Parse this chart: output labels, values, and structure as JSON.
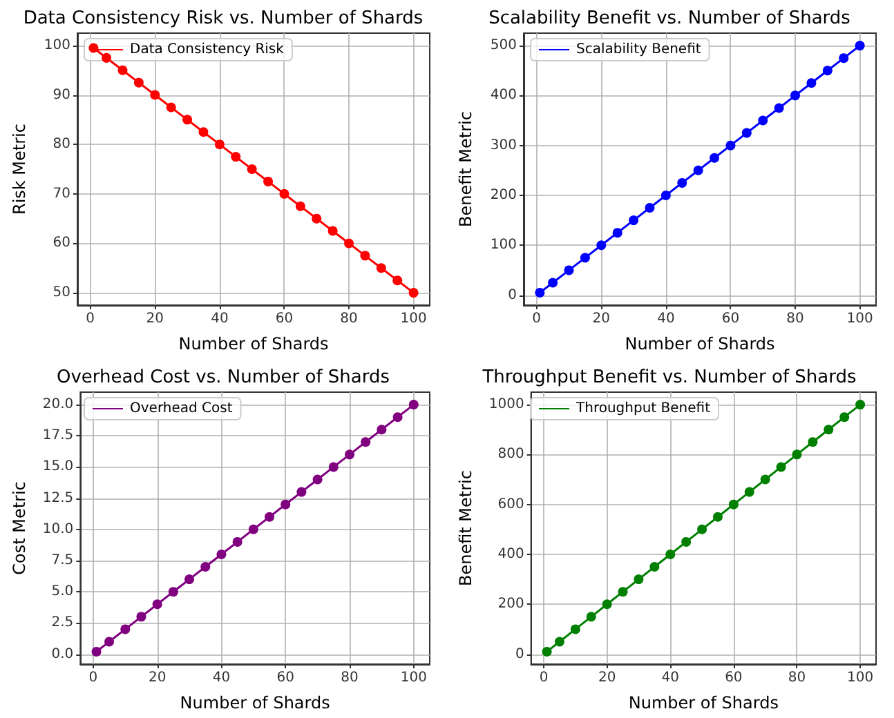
{
  "chart_data": [
    {
      "type": "line",
      "title": "Data Consistency Risk vs. Number of Shards",
      "xlabel": "Number of Shards",
      "ylabel": "Risk Metric",
      "x": [
        1,
        5,
        10,
        15,
        20,
        25,
        30,
        35,
        40,
        45,
        50,
        55,
        60,
        65,
        70,
        75,
        80,
        85,
        90,
        95,
        100
      ],
      "series": [
        {
          "name": "Data Consistency Risk",
          "color": "#ff0000",
          "values": [
            99.5,
            97.5,
            95,
            92.5,
            90,
            87.5,
            85,
            82.5,
            80,
            77.5,
            75,
            72.5,
            70,
            67.5,
            65,
            62.5,
            60,
            57.5,
            55,
            52.5,
            50
          ]
        }
      ],
      "xlim": [
        -4,
        105
      ],
      "xticks": [
        0,
        20,
        40,
        60,
        80,
        100
      ],
      "ylim": [
        47.5,
        102.5
      ],
      "yticks": [
        50,
        60,
        70,
        80,
        90,
        100
      ],
      "grid": true,
      "legend": "top left",
      "marker": "circle"
    },
    {
      "type": "line",
      "title": "Scalability Benefit vs. Number of Shards",
      "xlabel": "Number of Shards",
      "ylabel": "Benefit Metric",
      "x": [
        1,
        5,
        10,
        15,
        20,
        25,
        30,
        35,
        40,
        45,
        50,
        55,
        60,
        65,
        70,
        75,
        80,
        85,
        90,
        95,
        100
      ],
      "series": [
        {
          "name": "Scalability Benefit",
          "color": "#0000ff",
          "values": [
            5,
            25,
            50,
            75,
            100,
            125,
            150,
            175,
            200,
            225,
            250,
            275,
            300,
            325,
            350,
            375,
            400,
            425,
            450,
            475,
            500
          ]
        }
      ],
      "xlim": [
        -4,
        105
      ],
      "xticks": [
        0,
        20,
        40,
        60,
        80,
        100
      ],
      "ylim": [
        -20,
        525
      ],
      "yticks": [
        0,
        100,
        200,
        300,
        400,
        500
      ],
      "grid": true,
      "legend": "top left",
      "marker": "circle"
    },
    {
      "type": "line",
      "title": "Overhead Cost vs. Number of Shards",
      "xlabel": "Number of Shards",
      "ylabel": "Cost Metric",
      "x": [
        1,
        5,
        10,
        15,
        20,
        25,
        30,
        35,
        40,
        45,
        50,
        55,
        60,
        65,
        70,
        75,
        80,
        85,
        90,
        95,
        100
      ],
      "series": [
        {
          "name": "Overhead Cost",
          "color": "#800080",
          "values": [
            0.2,
            1,
            2,
            3,
            4,
            5,
            6,
            7,
            8,
            9,
            10,
            11,
            12,
            13,
            14,
            15,
            16,
            17,
            18,
            19,
            20
          ]
        }
      ],
      "xlim": [
        -4,
        105
      ],
      "xticks": [
        0,
        20,
        40,
        60,
        80,
        100
      ],
      "ylim": [
        -0.8,
        21
      ],
      "yticks": [
        {
          "value": 0,
          "label": "0.0"
        },
        2.5,
        {
          "value": 5,
          "label": "5.0"
        },
        7.5,
        {
          "value": 10,
          "label": "10.0"
        },
        12.5,
        {
          "value": 15,
          "label": "15.0"
        },
        17.5,
        {
          "value": 20,
          "label": "20.0"
        }
      ],
      "grid": true,
      "legend": "top left",
      "marker": "circle"
    },
    {
      "type": "line",
      "title": "Throughput Benefit vs. Number of Shards",
      "xlabel": "Number of Shards",
      "ylabel": "Benefit Metric",
      "x": [
        1,
        5,
        10,
        15,
        20,
        25,
        30,
        35,
        40,
        45,
        50,
        55,
        60,
        65,
        70,
        75,
        80,
        85,
        90,
        95,
        100
      ],
      "series": [
        {
          "name": "Throughput Benefit",
          "color": "#008000",
          "values": [
            10,
            50,
            100,
            150,
            200,
            250,
            300,
            350,
            400,
            450,
            500,
            550,
            600,
            650,
            700,
            750,
            800,
            850,
            900,
            950,
            1000
          ]
        }
      ],
      "xlim": [
        -4,
        105
      ],
      "xticks": [
        0,
        20,
        40,
        60,
        80,
        100
      ],
      "ylim": [
        -40,
        1050
      ],
      "yticks": [
        0,
        200,
        400,
        600,
        800,
        1000
      ],
      "grid": true,
      "legend": "top left",
      "marker": "circle"
    }
  ]
}
